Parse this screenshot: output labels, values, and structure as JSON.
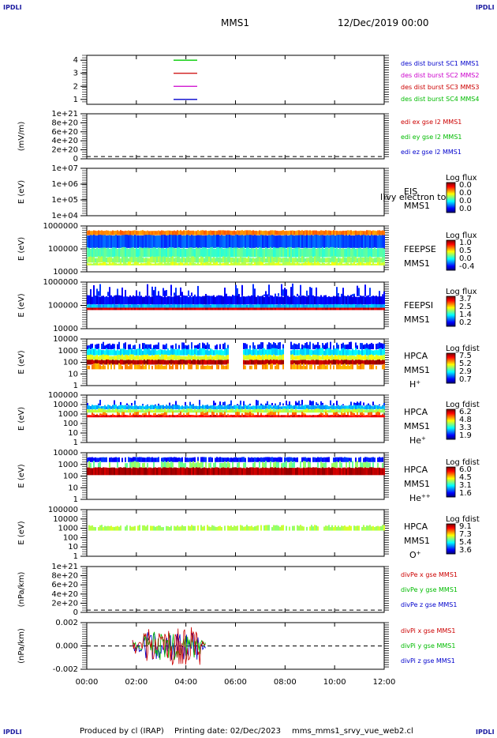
{
  "corner_label": "IPDLI",
  "header": {
    "spacecraft": "MMS1",
    "date": "12/Dec/2019 00:00"
  },
  "footer": {
    "producer": "Produced by cl (IRAP)",
    "printing": "Printing date: 02/Dec/2023",
    "script": "mms_mms1_srvy_vue_web2.cl"
  },
  "chart_data": {
    "type": "stacked-timeseries",
    "x_ticks": [
      "00:00",
      "02:00",
      "04:00",
      "06:00",
      "08:00",
      "10:00",
      "12:00"
    ],
    "x_range_hours": [
      0,
      12
    ],
    "panels": [
      {
        "id": "burst",
        "ylabel": "",
        "yticks": [
          "4",
          "3",
          "2",
          "1"
        ],
        "legend": [
          {
            "text": "des dist burst SC1 MMS1",
            "color": "#0000cc"
          },
          {
            "text": "des dist burst SC2 MMS2",
            "color": "#cc00cc"
          },
          {
            "text": "des dist burst SC3 MMS3",
            "color": "#cc0000"
          },
          {
            "text": "des dist burst SC4 MMS4",
            "color": "#00bb00"
          }
        ],
        "lines": [
          {
            "y": 4,
            "color": "#00cc00"
          },
          {
            "y": 3,
            "color": "#cc0000"
          },
          {
            "y": 2,
            "color": "#cc00cc"
          },
          {
            "y": 1,
            "color": "#0000cc"
          }
        ]
      },
      {
        "id": "edi",
        "ylabel": "(mV/m)",
        "yticks": [
          "1e+21",
          "8e+20",
          "6e+20",
          "4e+20",
          "2e+20",
          "0"
        ],
        "legend": [
          {
            "text": "edi ex gse l2 MMS1",
            "color": "#cc0000"
          },
          {
            "text": "edi ey gse l2 MMS1",
            "color": "#00bb00"
          },
          {
            "text": "edi ez gse l2 MMS1",
            "color": "#0000cc"
          }
        ]
      },
      {
        "id": "eis",
        "ylabel": "E (eV)",
        "yticks": [
          "1e+07",
          "1e+06",
          "1e+05",
          "1e+04"
        ],
        "labels": [
          "EIS",
          "MMS1"
        ],
        "overlay": "l)vy electron to",
        "colorbar": {
          "title": "Log flux",
          "ticks": [
            "0.0",
            "0.0",
            "0.0",
            "0.0"
          ]
        }
      },
      {
        "id": "feepse",
        "ylabel": "E (eV)",
        "yticks": [
          "1000000",
          "100000",
          "10000"
        ],
        "labels": [
          "FEEPSE",
          "MMS1"
        ],
        "colorbar": {
          "title": "Log flux",
          "ticks": [
            "1.0",
            "0.5",
            "0.0",
            "-0.4"
          ]
        }
      },
      {
        "id": "feepsi",
        "ylabel": "E (eV)",
        "yticks": [
          "1000000",
          "100000",
          "10000"
        ],
        "labels": [
          "FEEPSI",
          "MMS1"
        ],
        "colorbar": {
          "title": "Log flux",
          "ticks": [
            "3.7",
            "2.5",
            "1.4",
            "0.2"
          ]
        }
      },
      {
        "id": "hpca_h",
        "ylabel": "E (eV)",
        "yticks": [
          "10000",
          "1000",
          "100",
          "10",
          "1"
        ],
        "labels": [
          "HPCA",
          "MMS1",
          "H+"
        ],
        "colorbar": {
          "title": "Log fdist",
          "ticks": [
            "7.5",
            "5.2",
            "2.9",
            "0.7"
          ]
        }
      },
      {
        "id": "hpca_he",
        "ylabel": "E (eV)",
        "yticks": [
          "100000",
          "10000",
          "1000",
          "100",
          "10",
          "1"
        ],
        "labels": [
          "HPCA",
          "MMS1",
          "He+"
        ],
        "colorbar": {
          "title": "Log fdist",
          "ticks": [
            "6.2",
            "4.8",
            "3.3",
            "1.9"
          ]
        }
      },
      {
        "id": "hpca_hepp",
        "ylabel": "E (eV)",
        "yticks": [
          "10000",
          "1000",
          "100",
          "10",
          "1"
        ],
        "labels": [
          "HPCA",
          "MMS1",
          "He++"
        ],
        "colorbar": {
          "title": "Log fdist",
          "ticks": [
            "6.0",
            "4.5",
            "3.1",
            "1.6"
          ]
        }
      },
      {
        "id": "hpca_o",
        "ylabel": "E (eV)",
        "yticks": [
          "100000",
          "10000",
          "1000",
          "100",
          "10",
          "1"
        ],
        "labels": [
          "HPCA",
          "MMS1",
          "O+"
        ],
        "colorbar": {
          "title": "Log fdist",
          "ticks": [
            "9.1",
            "7.3",
            "5.4",
            "3.6"
          ]
        }
      },
      {
        "id": "divpe",
        "ylabel": "(nPa/km)",
        "yticks": [
          "1e+21",
          "8e+20",
          "6e+20",
          "4e+20",
          "2e+20",
          "0"
        ],
        "legend": [
          {
            "text": "divPe x gse MMS1",
            "color": "#cc0000"
          },
          {
            "text": "divPe y gse MMS1",
            "color": "#00bb00"
          },
          {
            "text": "divPe z gse MMS1",
            "color": "#0000cc"
          }
        ]
      },
      {
        "id": "divpi",
        "ylabel": "(nPa/km)",
        "yticks": [
          "0.002",
          "0.000",
          "-0.002"
        ],
        "legend": [
          {
            "text": "divPi x gse MMS1",
            "color": "#cc0000"
          },
          {
            "text": "divPi y gse MMS1",
            "color": "#00bb00"
          },
          {
            "text": "divPi z gse MMS1",
            "color": "#0000cc"
          }
        ]
      }
    ]
  }
}
